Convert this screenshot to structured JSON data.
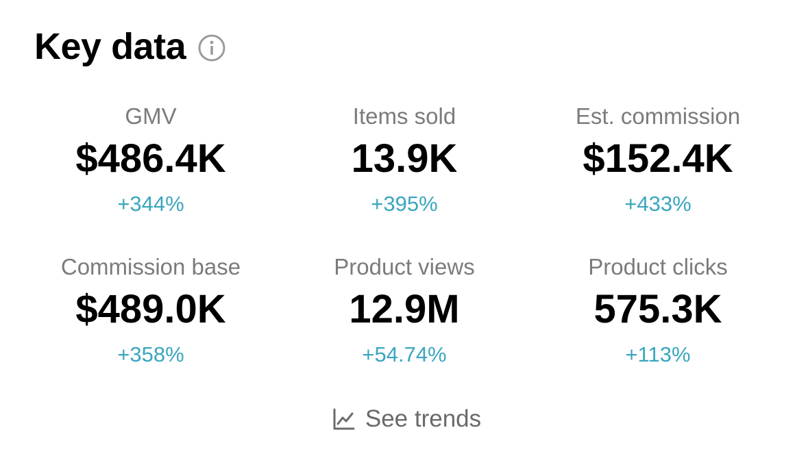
{
  "header": {
    "title": "Key data",
    "info_icon": "info-icon"
  },
  "colors": {
    "change_positive": "#3aa6bf",
    "label": "#7b7b7b",
    "value": "#000000"
  },
  "metrics": [
    {
      "label": "GMV",
      "value": "$486.4K",
      "change": "+344%"
    },
    {
      "label": "Items sold",
      "value": "13.9K",
      "change": "+395%"
    },
    {
      "label": "Est. commission",
      "value": "$152.4K",
      "change": "+433%"
    },
    {
      "label": "Commission base",
      "value": "$489.0K",
      "change": "+358%"
    },
    {
      "label": "Product views",
      "value": "12.9M",
      "change": "+54.74%"
    },
    {
      "label": "Product clicks",
      "value": "575.3K",
      "change": "+113%"
    }
  ],
  "footer": {
    "trends_label": "See trends",
    "trends_icon": "line-chart-icon"
  }
}
